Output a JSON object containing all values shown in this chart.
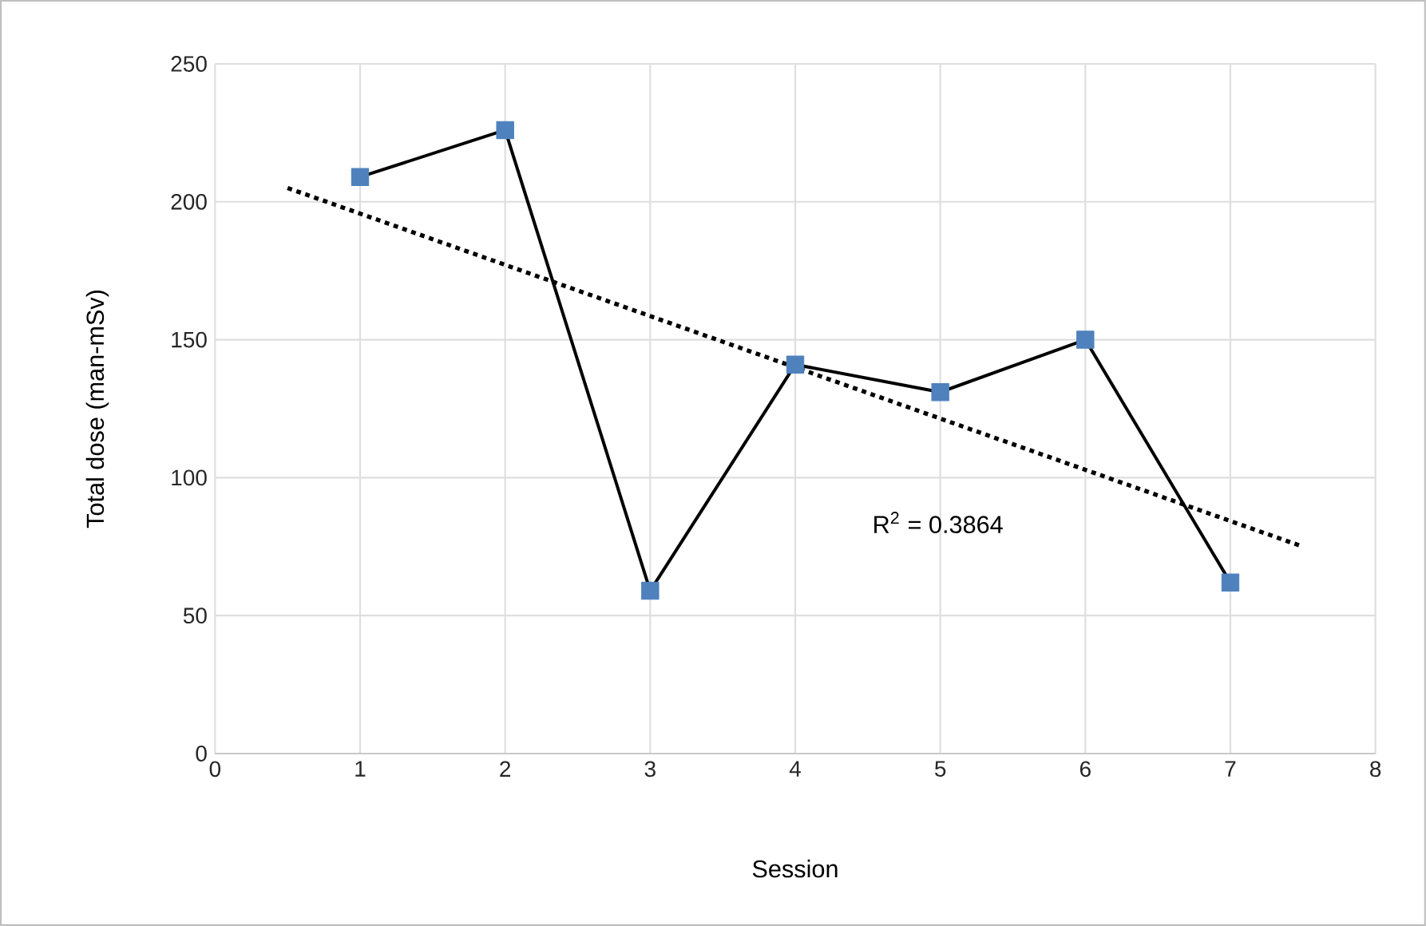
{
  "chart_data": {
    "type": "line",
    "xlabel": "Session",
    "ylabel": "Total dose (man-mSv)",
    "xlim": [
      0,
      8
    ],
    "xticks": [
      0,
      1,
      2,
      3,
      4,
      5,
      6,
      7,
      8
    ],
    "ylim": [
      0,
      250
    ],
    "yticks": [
      0,
      50,
      100,
      150,
      200,
      250
    ],
    "grid": true,
    "annotations": [
      "R$^{2}$ = 0.3864"
    ],
    "series": [
      {
        "x": [
          1,
          2,
          3,
          4,
          5,
          6,
          7
        ],
        "values": [
          209,
          226,
          59,
          141,
          131,
          150,
          62
        ],
        "color": "#000000",
        "colors": [
          "#4f81bd",
          "#4f81bd",
          "#4f81bd",
          "#4f81bd",
          "#4f81bd",
          "#4f81bd",
          "#4f81bd"
        ],
        "marker": "square",
        "line_style": "solid"
      },
      {
        "x": [
          0.5,
          7.5
        ],
        "values": [
          205,
          75
        ],
        "color": "#000000",
        "marker": "none",
        "line_style": "dotted"
      }
    ]
  }
}
